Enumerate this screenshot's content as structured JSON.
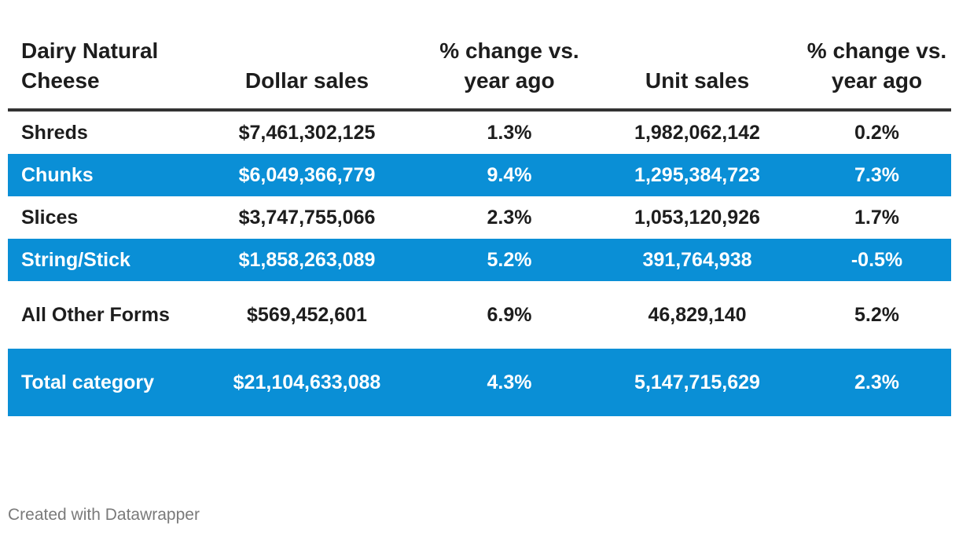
{
  "chart_data": {
    "type": "table",
    "columns": [
      "Dairy Natural Cheese",
      "Dollar sales",
      "% change vs. year ago",
      "Unit sales",
      "% change vs. year ago"
    ],
    "rows": [
      {
        "category": "Shreds",
        "dollar_sales": "$7,461,302,125",
        "dollar_change": "1.3%",
        "unit_sales": "1,982,062,142",
        "unit_change": "0.2%",
        "highlight": false
      },
      {
        "category": "Chunks",
        "dollar_sales": "$6,049,366,779",
        "dollar_change": "9.4%",
        "unit_sales": "1,295,384,723",
        "unit_change": "7.3%",
        "highlight": true
      },
      {
        "category": "Slices",
        "dollar_sales": "$3,747,755,066",
        "dollar_change": "2.3%",
        "unit_sales": "1,053,120,926",
        "unit_change": "1.7%",
        "highlight": false
      },
      {
        "category": "String/Stick",
        "dollar_sales": "$1,858,263,089",
        "dollar_change": "5.2%",
        "unit_sales": "391,764,938",
        "unit_change": "-0.5%",
        "highlight": true
      },
      {
        "category": "All Other Forms",
        "dollar_sales": "$569,452,601",
        "dollar_change": "6.9%",
        "unit_sales": "46,829,140",
        "unit_change": "5.2%",
        "highlight": false
      },
      {
        "category": "Total category",
        "dollar_sales": "$21,104,633,088",
        "dollar_change": "4.3%",
        "unit_sales": "5,147,715,629",
        "unit_change": "2.3%",
        "highlight": true
      }
    ]
  },
  "footer": {
    "credit": "Created with Datawrapper"
  },
  "colors": {
    "highlight_row": "#0a8fd6",
    "header_rule": "#333333",
    "text": "#1d1d1d",
    "footer_text": "#7a7a7a"
  }
}
